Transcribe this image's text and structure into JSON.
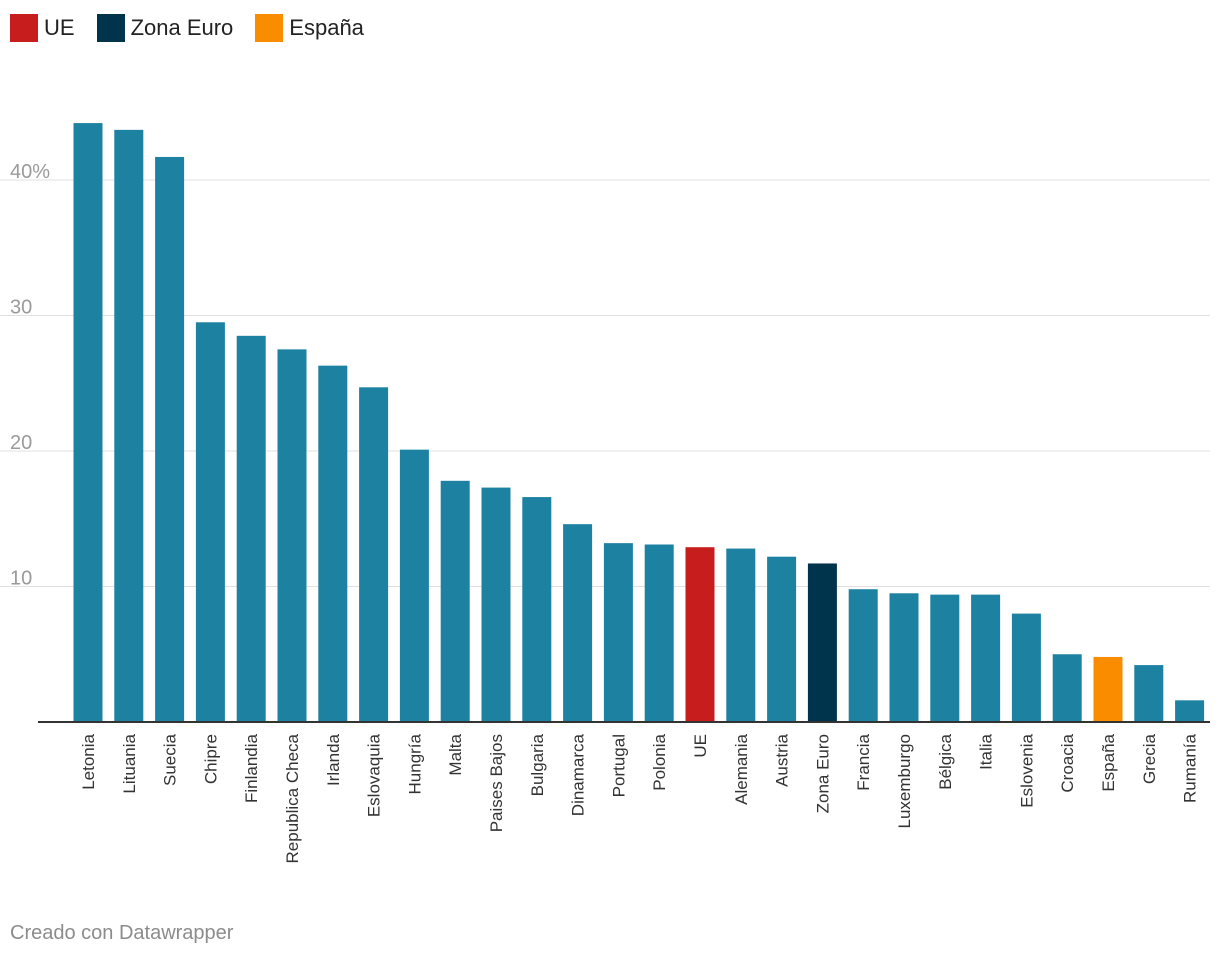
{
  "legend": [
    {
      "label": "UE",
      "color": "#c71e1d"
    },
    {
      "label": "Zona Euro",
      "color": "#00344d"
    },
    {
      "label": "España",
      "color": "#fa8c00"
    }
  ],
  "footer": {
    "credit": "Creado con Datawrapper"
  },
  "chart_data": {
    "type": "bar",
    "title": "",
    "xlabel": "",
    "ylabel": "",
    "ylim": [
      0,
      45
    ],
    "yticks": [
      10,
      20,
      30,
      40
    ],
    "ytick_labels": [
      "10",
      "20",
      "30",
      "40%"
    ],
    "grid": true,
    "legend_position": "top-left",
    "default_color": "#1d81a2",
    "categories": [
      "Letonia",
      "Lituania",
      "Suecia",
      "Chipre",
      "Finlandia",
      "Republica Checa",
      "Irlanda",
      "Eslovaquia",
      "Hungría",
      "Malta",
      "Paises Bajos",
      "Bulgaria",
      "Dinamarca",
      "Portugal",
      "Polonia",
      "UE",
      "Alemania",
      "Austria",
      "Zona Euro",
      "Francia",
      "Luxemburgo",
      "Bélgica",
      "Italia",
      "Eslovenia",
      "Croacia",
      "España",
      "Grecia",
      "Rumanía"
    ],
    "values": [
      44.2,
      43.7,
      41.7,
      29.5,
      28.5,
      27.5,
      26.3,
      24.7,
      20.1,
      17.8,
      17.3,
      16.6,
      14.6,
      13.2,
      13.1,
      12.9,
      12.8,
      12.2,
      11.7,
      9.8,
      9.5,
      9.4,
      9.4,
      8.0,
      5.0,
      4.8,
      4.2,
      1.6
    ],
    "highlight_colors": {
      "UE": "#c71e1d",
      "Zona Euro": "#00344d",
      "España": "#fa8c00"
    }
  }
}
